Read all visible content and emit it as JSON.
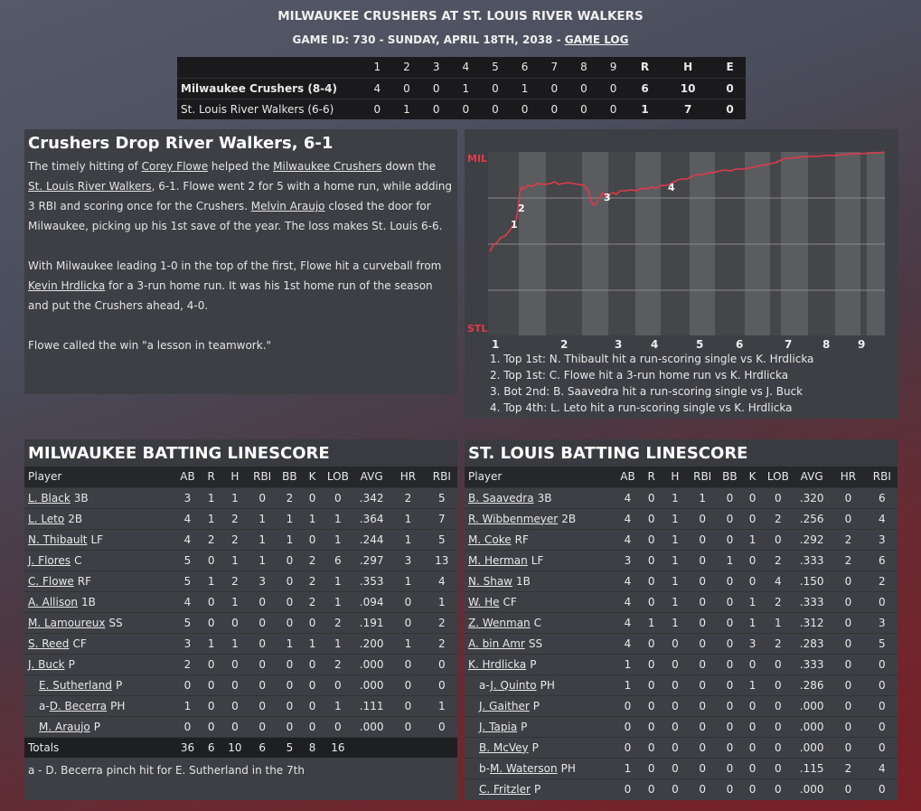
{
  "header": {
    "title": "MILWAUKEE CRUSHERS AT ST. LOUIS RIVER WALKERS",
    "sub_prefix": "GAME ID: 730 - SUNDAY, APRIL 18TH, 2038 - ",
    "game_log": "GAME LOG"
  },
  "linescore": {
    "innings": [
      "1",
      "2",
      "3",
      "4",
      "5",
      "6",
      "7",
      "8",
      "9"
    ],
    "totals_headers": [
      "R",
      "H",
      "E"
    ],
    "teams": [
      {
        "name": "Milwaukee Crushers (8-4)",
        "innings": [
          "4",
          "0",
          "0",
          "1",
          "0",
          "1",
          "0",
          "0",
          "0"
        ],
        "R": "6",
        "H": "10",
        "E": "0"
      },
      {
        "name": "St. Louis River Walkers (6-6)",
        "innings": [
          "0",
          "1",
          "0",
          "0",
          "0",
          "0",
          "0",
          "0",
          "0"
        ],
        "R": "1",
        "H": "7",
        "E": "0"
      }
    ]
  },
  "story": {
    "headline": "Crushers Drop River Walkers, 6-1",
    "p1_a": "The timely hitting of ",
    "p1_link1": "Corey Flowe",
    "p1_b": " helped the ",
    "p1_link2": "Milwaukee Crushers",
    "p1_c": " down the ",
    "p1_link3": "St. Louis River Walkers",
    "p1_d": ", 6-1. Flowe went 2 for 5 with a home run, while adding 3 RBI and scoring once for the Crushers. ",
    "p1_link4": "Melvin Araujo",
    "p1_e": " closed the door for Milwaukee, picking up his 1st save of the year. The loss makes St. Louis 6-6.",
    "p2_a": "With Milwaukee leading 1-0 in the top of the first, Flowe hit a curveball from ",
    "p2_link": "Kevin Hrdlicka",
    "p2_b": " for a 3-run home run. It was his 1st home run of the season and put the Crushers ahead, 4-0.",
    "p3": "Flowe called the win \"a lesson in teamwork.\""
  },
  "win_prob": {
    "top_label": "MIL",
    "bottom_label": "STL",
    "accent_color": "#e03a4a",
    "inning_labels": [
      "1",
      "2",
      "3",
      "4",
      "5",
      "6",
      "7",
      "8",
      "9"
    ],
    "markers": [
      "1",
      "2",
      "3",
      "4"
    ],
    "plays": [
      "1. Top 1st: N. Thibault hit a run-scoring single vs K. Hrdlicka",
      "2. Top 1st: C. Flowe hit a 3-run home run vs K. Hrdlicka",
      "3. Bot 2nd: B. Saavedra hit a run-scoring single vs J. Buck",
      "4. Top 4th: L. Leto hit a run-scoring single vs K. Hrdlicka"
    ]
  },
  "mil_batting": {
    "title": "MILWAUKEE BATTING LINESCORE",
    "columns": [
      "Player",
      "AB",
      "R",
      "H",
      "RBI",
      "BB",
      "K",
      "LOB",
      "AVG",
      "HR",
      "RBI"
    ],
    "rows": [
      {
        "prefix": "",
        "name": "L. Black",
        "pos": "3B",
        "sub": false,
        "stats": [
          "3",
          "1",
          "1",
          "0",
          "2",
          "0",
          "0",
          ".342",
          "2",
          "5"
        ]
      },
      {
        "prefix": "",
        "name": "L. Leto",
        "pos": "2B",
        "sub": false,
        "stats": [
          "4",
          "1",
          "2",
          "1",
          "1",
          "1",
          "1",
          ".364",
          "1",
          "7"
        ]
      },
      {
        "prefix": "",
        "name": "N. Thibault",
        "pos": "LF",
        "sub": false,
        "stats": [
          "4",
          "2",
          "2",
          "1",
          "1",
          "0",
          "1",
          ".244",
          "1",
          "5"
        ]
      },
      {
        "prefix": "",
        "name": "J. Flores",
        "pos": "C",
        "sub": false,
        "stats": [
          "5",
          "0",
          "1",
          "1",
          "0",
          "2",
          "6",
          ".297",
          "3",
          "13"
        ]
      },
      {
        "prefix": "",
        "name": "C. Flowe",
        "pos": "RF",
        "sub": false,
        "stats": [
          "5",
          "1",
          "2",
          "3",
          "0",
          "2",
          "1",
          ".353",
          "1",
          "4"
        ]
      },
      {
        "prefix": "",
        "name": "A. Allison",
        "pos": "1B",
        "sub": false,
        "stats": [
          "4",
          "0",
          "1",
          "0",
          "0",
          "2",
          "1",
          ".094",
          "0",
          "1"
        ]
      },
      {
        "prefix": "",
        "name": "M. Lamoureux",
        "pos": "SS",
        "sub": false,
        "stats": [
          "5",
          "0",
          "0",
          "0",
          "0",
          "0",
          "2",
          ".191",
          "0",
          "2"
        ]
      },
      {
        "prefix": "",
        "name": "S. Reed",
        "pos": "CF",
        "sub": false,
        "stats": [
          "3",
          "1",
          "1",
          "0",
          "1",
          "1",
          "1",
          ".200",
          "1",
          "2"
        ]
      },
      {
        "prefix": "",
        "name": "J. Buck",
        "pos": "P",
        "sub": false,
        "stats": [
          "2",
          "0",
          "0",
          "0",
          "0",
          "0",
          "2",
          ".000",
          "0",
          "0"
        ]
      },
      {
        "prefix": "",
        "name": "E. Sutherland",
        "pos": "P",
        "sub": true,
        "stats": [
          "0",
          "0",
          "0",
          "0",
          "0",
          "0",
          "0",
          ".000",
          "0",
          "0"
        ]
      },
      {
        "prefix": "a-",
        "name": "D. Becerra",
        "pos": "PH",
        "sub": true,
        "stats": [
          "1",
          "0",
          "0",
          "0",
          "0",
          "0",
          "1",
          ".111",
          "0",
          "1"
        ]
      },
      {
        "prefix": "",
        "name": "M. Araujo",
        "pos": "P",
        "sub": true,
        "stats": [
          "0",
          "0",
          "0",
          "0",
          "0",
          "0",
          "0",
          ".000",
          "0",
          "0"
        ]
      }
    ],
    "totals": {
      "label": "Totals",
      "stats": [
        "36",
        "6",
        "10",
        "6",
        "5",
        "8",
        "16",
        "",
        "",
        ""
      ]
    },
    "footnote": "a - D. Becerra pinch hit for E. Sutherland in the 7th"
  },
  "stl_batting": {
    "title": "ST. LOUIS BATTING LINESCORE",
    "columns": [
      "Player",
      "AB",
      "R",
      "H",
      "RBI",
      "BB",
      "K",
      "LOB",
      "AVG",
      "HR",
      "RBI"
    ],
    "rows": [
      {
        "prefix": "",
        "name": "B. Saavedra",
        "pos": "3B",
        "sub": false,
        "stats": [
          "4",
          "0",
          "1",
          "1",
          "0",
          "0",
          "0",
          ".320",
          "0",
          "6"
        ]
      },
      {
        "prefix": "",
        "name": "R. Wibbenmeyer",
        "pos": "2B",
        "sub": false,
        "stats": [
          "4",
          "0",
          "1",
          "0",
          "0",
          "0",
          "2",
          ".256",
          "0",
          "4"
        ]
      },
      {
        "prefix": "",
        "name": "M. Coke",
        "pos": "RF",
        "sub": false,
        "stats": [
          "4",
          "0",
          "1",
          "0",
          "0",
          "1",
          "0",
          ".292",
          "2",
          "3"
        ]
      },
      {
        "prefix": "",
        "name": "M. Herman",
        "pos": "LF",
        "sub": false,
        "stats": [
          "3",
          "0",
          "1",
          "0",
          "1",
          "0",
          "2",
          ".333",
          "2",
          "6"
        ]
      },
      {
        "prefix": "",
        "name": "N. Shaw",
        "pos": "1B",
        "sub": false,
        "stats": [
          "4",
          "0",
          "1",
          "0",
          "0",
          "0",
          "4",
          ".150",
          "0",
          "2"
        ]
      },
      {
        "prefix": "",
        "name": "W. He",
        "pos": "CF",
        "sub": false,
        "stats": [
          "4",
          "0",
          "1",
          "0",
          "0",
          "1",
          "2",
          ".333",
          "0",
          "0"
        ]
      },
      {
        "prefix": "",
        "name": "Z. Wenman",
        "pos": "C",
        "sub": false,
        "stats": [
          "4",
          "1",
          "1",
          "0",
          "0",
          "1",
          "1",
          ".312",
          "0",
          "3"
        ]
      },
      {
        "prefix": "",
        "name": "A. bin Amr",
        "pos": "SS",
        "sub": false,
        "stats": [
          "4",
          "0",
          "0",
          "0",
          "0",
          "3",
          "2",
          ".283",
          "0",
          "5"
        ]
      },
      {
        "prefix": "",
        "name": "K. Hrdlicka",
        "pos": "P",
        "sub": false,
        "stats": [
          "1",
          "0",
          "0",
          "0",
          "0",
          "0",
          "0",
          ".333",
          "0",
          "0"
        ]
      },
      {
        "prefix": "a-",
        "name": "J. Quinto",
        "pos": "PH",
        "sub": true,
        "stats": [
          "1",
          "0",
          "0",
          "0",
          "0",
          "1",
          "0",
          ".286",
          "0",
          "0"
        ]
      },
      {
        "prefix": "",
        "name": "J. Gaither",
        "pos": "P",
        "sub": true,
        "stats": [
          "0",
          "0",
          "0",
          "0",
          "0",
          "0",
          "0",
          ".000",
          "0",
          "0"
        ]
      },
      {
        "prefix": "",
        "name": "J. Tapia",
        "pos": "P",
        "sub": true,
        "stats": [
          "0",
          "0",
          "0",
          "0",
          "0",
          "0",
          "0",
          ".000",
          "0",
          "0"
        ]
      },
      {
        "prefix": "",
        "name": "B. McVey",
        "pos": "P",
        "sub": true,
        "stats": [
          "0",
          "0",
          "0",
          "0",
          "0",
          "0",
          "0",
          ".000",
          "0",
          "0"
        ]
      },
      {
        "prefix": "b-",
        "name": "M. Waterson",
        "pos": "PH",
        "sub": true,
        "stats": [
          "1",
          "0",
          "0",
          "0",
          "0",
          "0",
          "0",
          ".115",
          "2",
          "4"
        ]
      },
      {
        "prefix": "",
        "name": "C. Fritzler",
        "pos": "P",
        "sub": true,
        "stats": [
          "0",
          "0",
          "0",
          "0",
          "0",
          "0",
          "0",
          ".000",
          "0",
          "0"
        ]
      }
    ]
  }
}
